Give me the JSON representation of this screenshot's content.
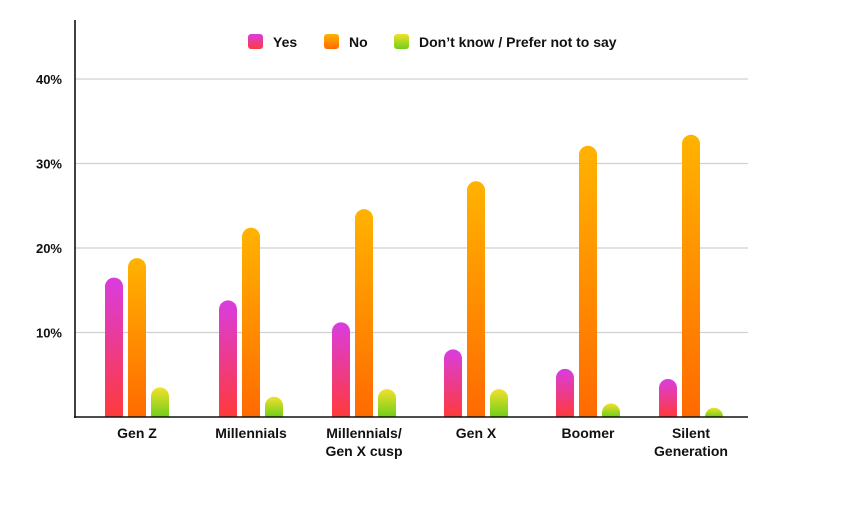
{
  "chart_data": {
    "type": "bar",
    "title": "",
    "xlabel": "",
    "ylabel": "",
    "ylim": [
      0,
      40
    ],
    "y_ticks": [
      10,
      20,
      30,
      40
    ],
    "y_tick_labels": [
      "10%",
      "20%",
      "30%",
      "40%"
    ],
    "grid": true,
    "legend_position": "top",
    "categories": [
      [
        "Gen Z"
      ],
      [
        "Millennials"
      ],
      [
        "Millennials/",
        "Gen X cusp"
      ],
      [
        "Gen X"
      ],
      [
        "Boomer"
      ],
      [
        "Silent",
        "Generation"
      ]
    ],
    "series": [
      {
        "name": "Yes",
        "values": [
          16.5,
          13.8,
          11.2,
          8.0,
          5.7,
          4.5
        ],
        "color_top": "#d93ce0",
        "color_bottom": "#ff3a3a"
      },
      {
        "name": "No",
        "values": [
          18.8,
          22.4,
          24.6,
          27.9,
          32.1,
          33.4
        ],
        "color_top": "#ffb300",
        "color_bottom": "#ff6a00"
      },
      {
        "name": "Don’t know / Prefer not to say",
        "values": [
          3.5,
          2.4,
          3.3,
          3.3,
          1.6,
          1.1
        ],
        "color_top": "#f3e02a",
        "color_bottom": "#6fcf1a"
      }
    ]
  }
}
